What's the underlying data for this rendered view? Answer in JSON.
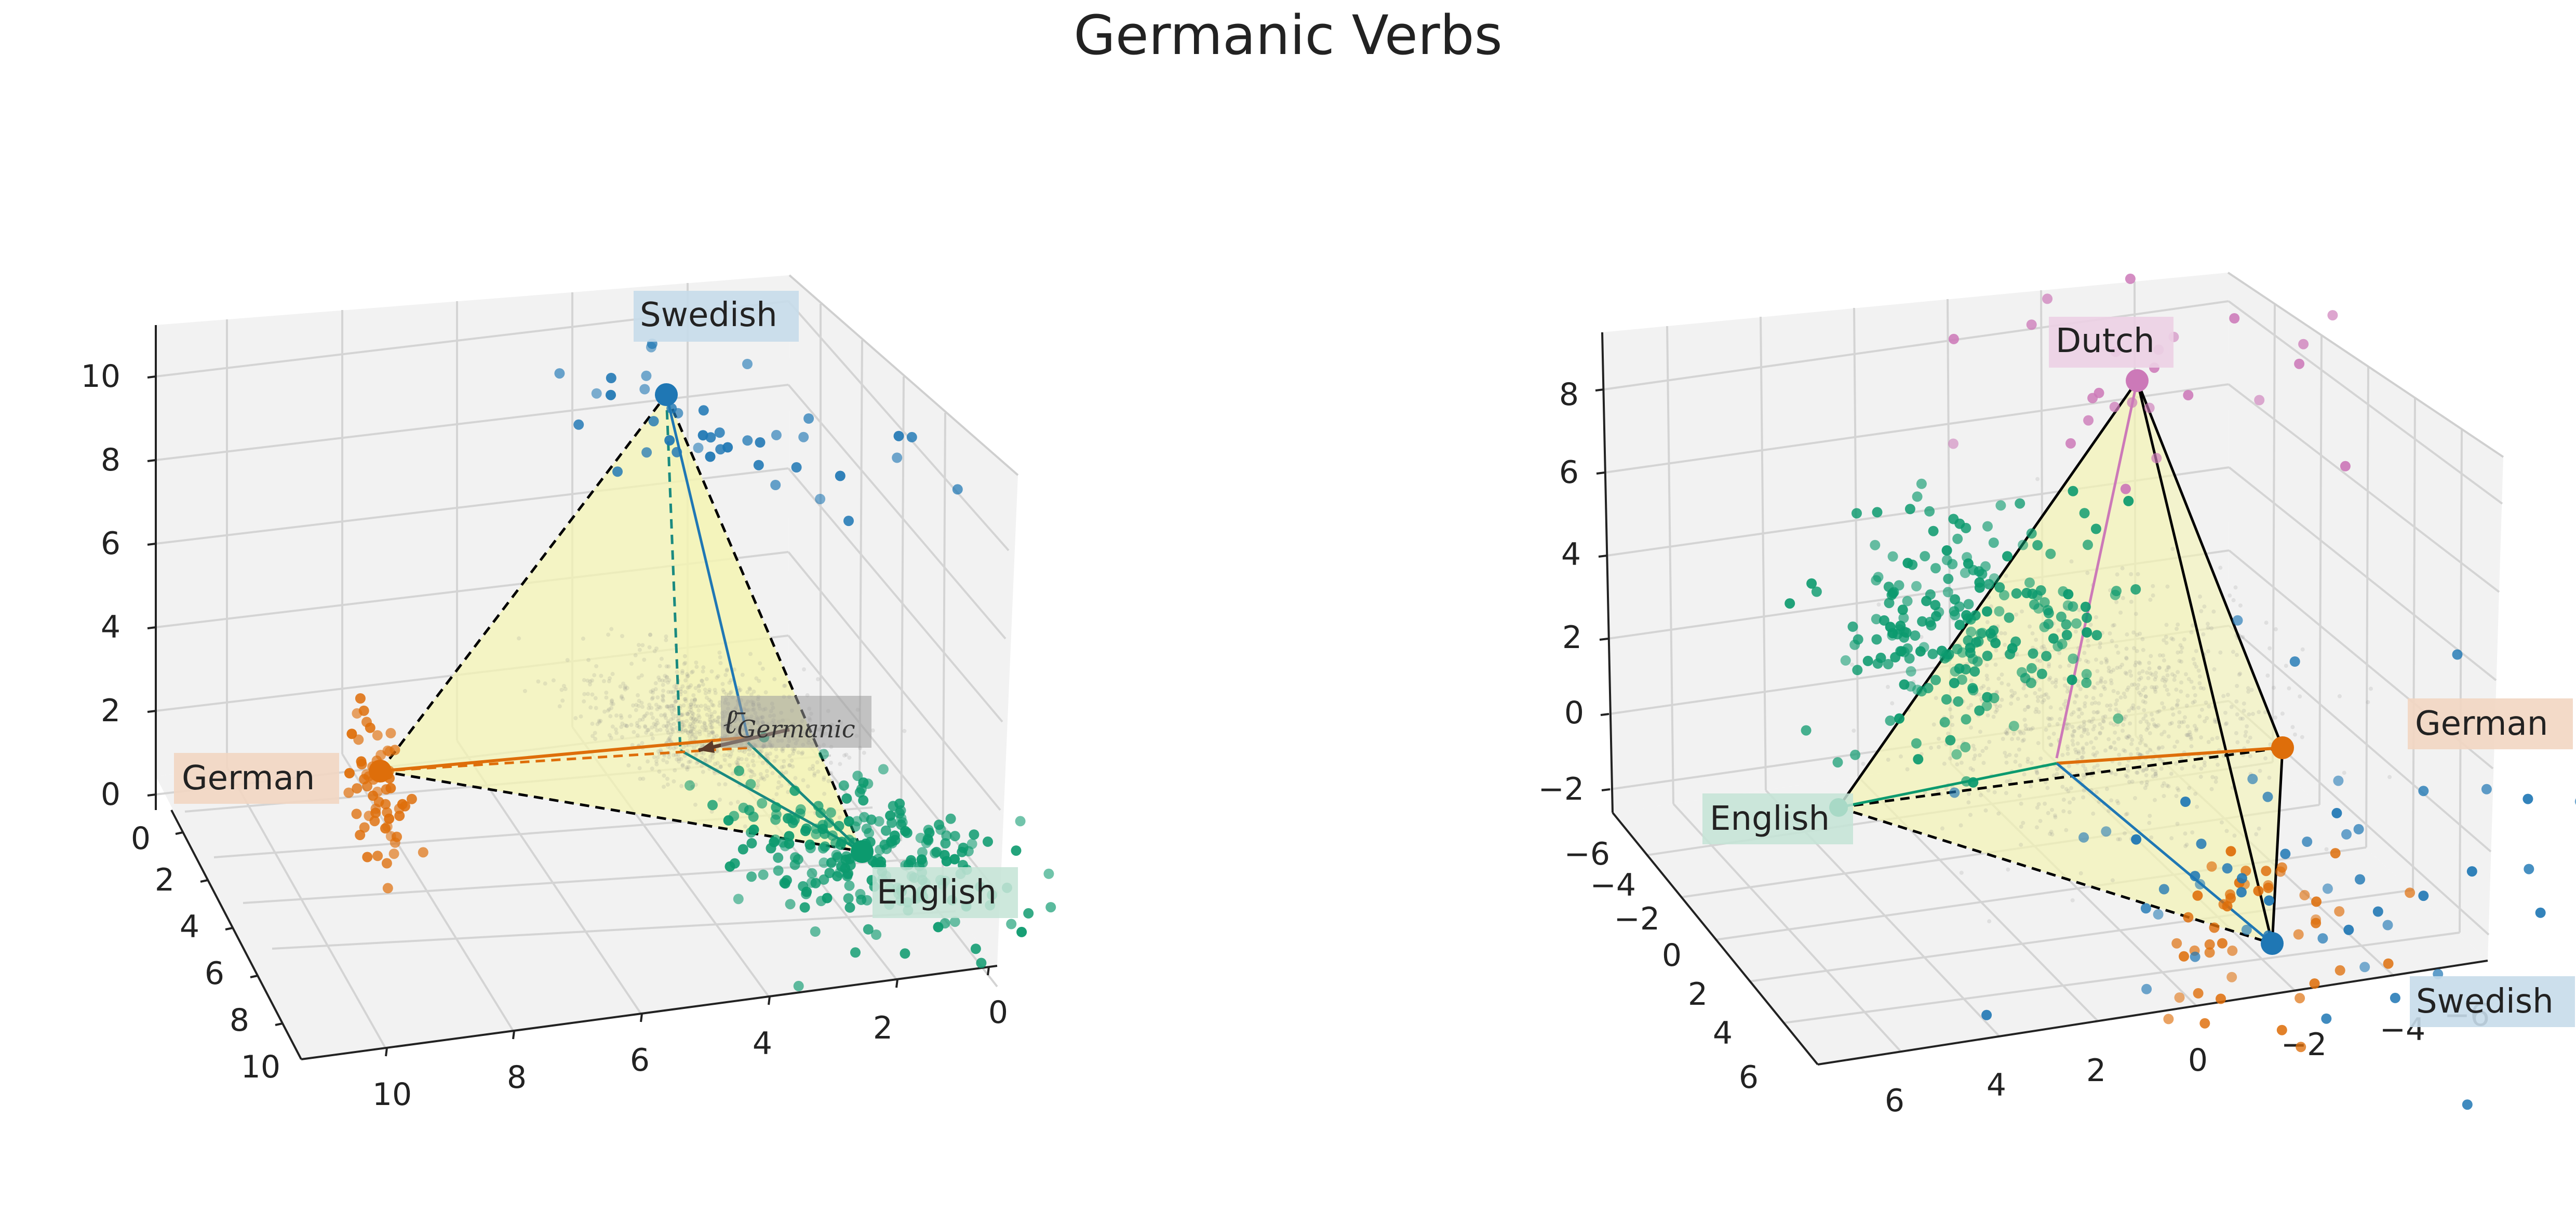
{
  "figure_title": "Germanic Verbs",
  "colors": {
    "German": "#de6e0a",
    "Swedish": "#1f77b4",
    "English": "#0c9a6e",
    "Dutch": "#cc79b8",
    "simplex_fill": "#f4f4b4",
    "cloud": "#8a8a8a",
    "label_bg_German": "#f2d6c2",
    "label_bg_Swedish": "#c7dcea",
    "label_bg_English": "#c4e4d6",
    "label_bg_Dutch": "#ecd0e4"
  },
  "chart_data": [
    {
      "type": "scatter",
      "projection": "3d",
      "title": "",
      "vertex_labels": [
        {
          "name": "Swedish",
          "color": "#1f77b4"
        },
        {
          "name": "German",
          "color": "#de6e0a"
        },
        {
          "name": "English",
          "color": "#0c9a6e"
        }
      ],
      "centroid_label_main": "ℓ̄",
      "centroid_label_sub": "Germanic",
      "xticks": [
        "10",
        "8",
        "6",
        "4",
        "2",
        "0"
      ],
      "yticks": [
        "0",
        "2",
        "4",
        "6",
        "8",
        "10"
      ],
      "zticks": [
        "0",
        "2",
        "4",
        "6",
        "8",
        "10"
      ],
      "xlim": [
        0,
        11
      ],
      "ylim": [
        0,
        11
      ],
      "zlim": [
        0,
        11
      ],
      "vertices": {
        "German": [
          11.0,
          0.0,
          0.0
        ],
        "English": [
          0.0,
          0.0,
          0.0
        ],
        "Swedish": [
          0.0,
          11.0,
          11.0
        ]
      },
      "series": [
        {
          "name": "German",
          "color": "#de6e0a",
          "center": [
            11.0,
            0.0,
            -0.8
          ],
          "spread": [
            0.35,
            0.35,
            1.3
          ],
          "count": 60
        },
        {
          "name": "Swedish",
          "color": "#1f77b4",
          "center": [
            2.0,
            8.0,
            10.5
          ],
          "spread": [
            2.2,
            2.2,
            0.9
          ],
          "count": 40
        },
        {
          "name": "English",
          "color": "#0c9a6e",
          "center": [
            0.0,
            0.0,
            0.0
          ],
          "spread": [
            1.6,
            1.6,
            1.1
          ],
          "count": 230
        }
      ],
      "cloud_center": [
        2.2,
        5.0,
        1.8
      ]
    },
    {
      "type": "scatter",
      "projection": "3d",
      "title": "",
      "vertex_labels": [
        {
          "name": "Dutch",
          "color": "#cc79b8"
        },
        {
          "name": "German",
          "color": "#de6e0a"
        },
        {
          "name": "English",
          "color": "#0c9a6e"
        },
        {
          "name": "Swedish",
          "color": "#1f77b4"
        }
      ],
      "xticks": [
        "6",
        "4",
        "2",
        "0",
        "−2",
        "−4",
        "−6"
      ],
      "yticks": [
        "−6",
        "−4",
        "−2",
        "0",
        "2",
        "4",
        "6"
      ],
      "zticks": [
        "−2",
        "0",
        "2",
        "4",
        "6",
        "8"
      ],
      "xlim": [
        -6,
        6
      ],
      "ylim": [
        -6,
        6
      ],
      "zlim": [
        -3,
        9
      ],
      "vertices": {
        "English": [
          3.5,
          -4.0,
          -1.0
        ],
        "German": [
          -5.0,
          3.0,
          0.0
        ],
        "Swedish": [
          -3.0,
          -2.5,
          -3.0
        ],
        "Dutch": [
          -1.0,
          -1.0,
          9.0
        ]
      },
      "series": [
        {
          "name": "English",
          "color": "#0c9a6e",
          "center": [
            3.6,
            -4.2,
            -1.2
          ],
          "spread": [
            1.1,
            1.1,
            1.0
          ],
          "count": 220
        },
        {
          "name": "German",
          "color": "#de6e0a",
          "center": [
            -5.0,
            3.0,
            0.0
          ],
          "spread": [
            0.8,
            0.8,
            1.1
          ],
          "count": 45
        },
        {
          "name": "Swedish",
          "color": "#1f77b4",
          "center": [
            -2.6,
            -2.0,
            -3.0
          ],
          "spread": [
            2.0,
            2.0,
            0.6
          ],
          "count": 50
        },
        {
          "name": "Dutch",
          "color": "#cc79b8",
          "center": [
            -1.0,
            -1.0,
            9.0
          ],
          "spread": [
            1.6,
            1.6,
            0.5
          ],
          "count": 25
        }
      ],
      "cloud_center": [
        -0.5,
        -0.5,
        0.8
      ]
    }
  ]
}
